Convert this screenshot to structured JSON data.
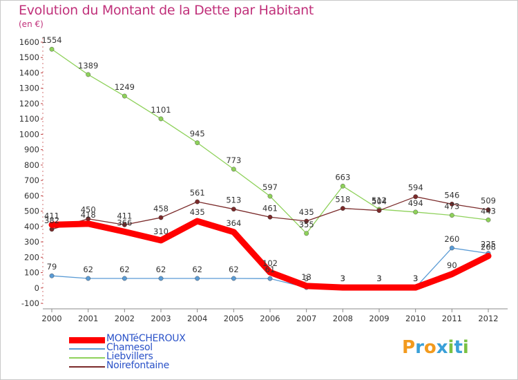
{
  "title": "Evolution du Montant de la Dette par Habitant",
  "unit_label": "(en €)",
  "logo_text": "Proxiti",
  "chart_data": {
    "type": "line",
    "title": "Evolution du Montant de la Dette par Habitant",
    "ylabel": "(en €)",
    "xlabel": "",
    "x": [
      2000,
      2001,
      2002,
      2003,
      2004,
      2005,
      2006,
      2007,
      2008,
      2009,
      2010,
      2011,
      2012
    ],
    "ylim": [
      -100,
      1600
    ],
    "yticks": [
      -100,
      0,
      100,
      200,
      300,
      400,
      500,
      600,
      700,
      800,
      900,
      1000,
      1100,
      1200,
      1300,
      1400,
      1500,
      1600
    ],
    "grid": false,
    "legend_position": "bottom-left",
    "series": [
      {
        "name": "MONTéCHEROUX",
        "color": "#ff0000",
        "values": [
          411,
          418,
          366,
          310,
          435,
          364,
          102,
          13,
          3,
          3,
          3,
          90,
          208
        ]
      },
      {
        "name": "Chamesol",
        "color": "#5a9bd5",
        "values": [
          79,
          62,
          62,
          62,
          62,
          62,
          61,
          3,
          3,
          3,
          3,
          260,
          225
        ]
      },
      {
        "name": "Liebvillers",
        "color": "#8ed15a",
        "values": [
          1554,
          1389,
          1249,
          1101,
          945,
          773,
          597,
          355,
          663,
          512,
          494,
          473,
          443
        ]
      },
      {
        "name": "Noirefontaine",
        "color": "#7a2a2a",
        "values": [
          382,
          450,
          411,
          458,
          561,
          513,
          461,
          435,
          518,
          504,
          594,
          546,
          509
        ]
      }
    ]
  }
}
